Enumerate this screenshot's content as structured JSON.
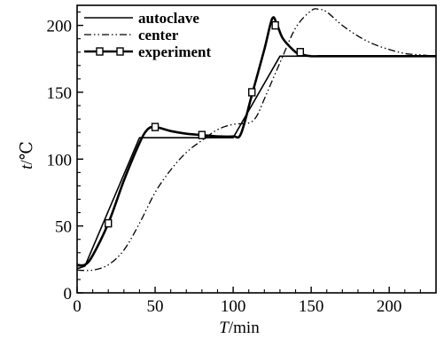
{
  "chart_data": {
    "type": "line",
    "xlabel": {
      "italic": "T",
      "unit": "/min"
    },
    "ylabel": {
      "italic": "t",
      "unit": "/℃"
    },
    "xlim": [
      0,
      230
    ],
    "ylim": [
      0,
      215
    ],
    "xticks": [
      0,
      50,
      100,
      150,
      200
    ],
    "yticks": [
      0,
      50,
      100,
      150,
      200
    ],
    "grid": false,
    "legend_position": "top-left",
    "series": [
      {
        "name": "autoclave",
        "style": "solid",
        "x": [
          0,
          5,
          40,
          100,
          130,
          230
        ],
        "y": [
          18,
          20,
          116,
          116,
          177,
          177
        ]
      },
      {
        "name": "center",
        "style": "dash-dot-dot",
        "x": [
          0,
          10,
          20,
          30,
          40,
          50,
          60,
          70,
          80,
          90,
          100,
          110,
          115,
          120,
          130,
          140,
          150,
          155,
          160,
          170,
          180,
          190,
          200,
          210,
          220,
          230
        ],
        "y": [
          17,
          17,
          21,
          32,
          52,
          75,
          92,
          105,
          114,
          122,
          126,
          127,
          132,
          145,
          172,
          198,
          211,
          212,
          210,
          200,
          192,
          186,
          182,
          179,
          178,
          177
        ]
      },
      {
        "name": "experiment",
        "style": "solid-thick-square-markers",
        "x": [
          0,
          5,
          10,
          20,
          30,
          40,
          45,
          50,
          60,
          70,
          80,
          90,
          100,
          105,
          112,
          120,
          125,
          128,
          132,
          140,
          145,
          150,
          160,
          180,
          230
        ],
        "y": [
          21,
          21,
          28,
          52,
          84,
          112,
          122,
          124,
          121,
          119,
          118,
          117,
          117,
          119,
          148,
          182,
          205,
          201,
          190,
          180,
          178,
          177,
          177,
          177,
          177
        ]
      }
    ],
    "marker_points": [
      {
        "x": 20,
        "y": 52
      },
      {
        "x": 50,
        "y": 124
      },
      {
        "x": 80,
        "y": 118
      },
      {
        "x": 112,
        "y": 150
      },
      {
        "x": 127,
        "y": 200
      },
      {
        "x": 143,
        "y": 180
      }
    ]
  }
}
